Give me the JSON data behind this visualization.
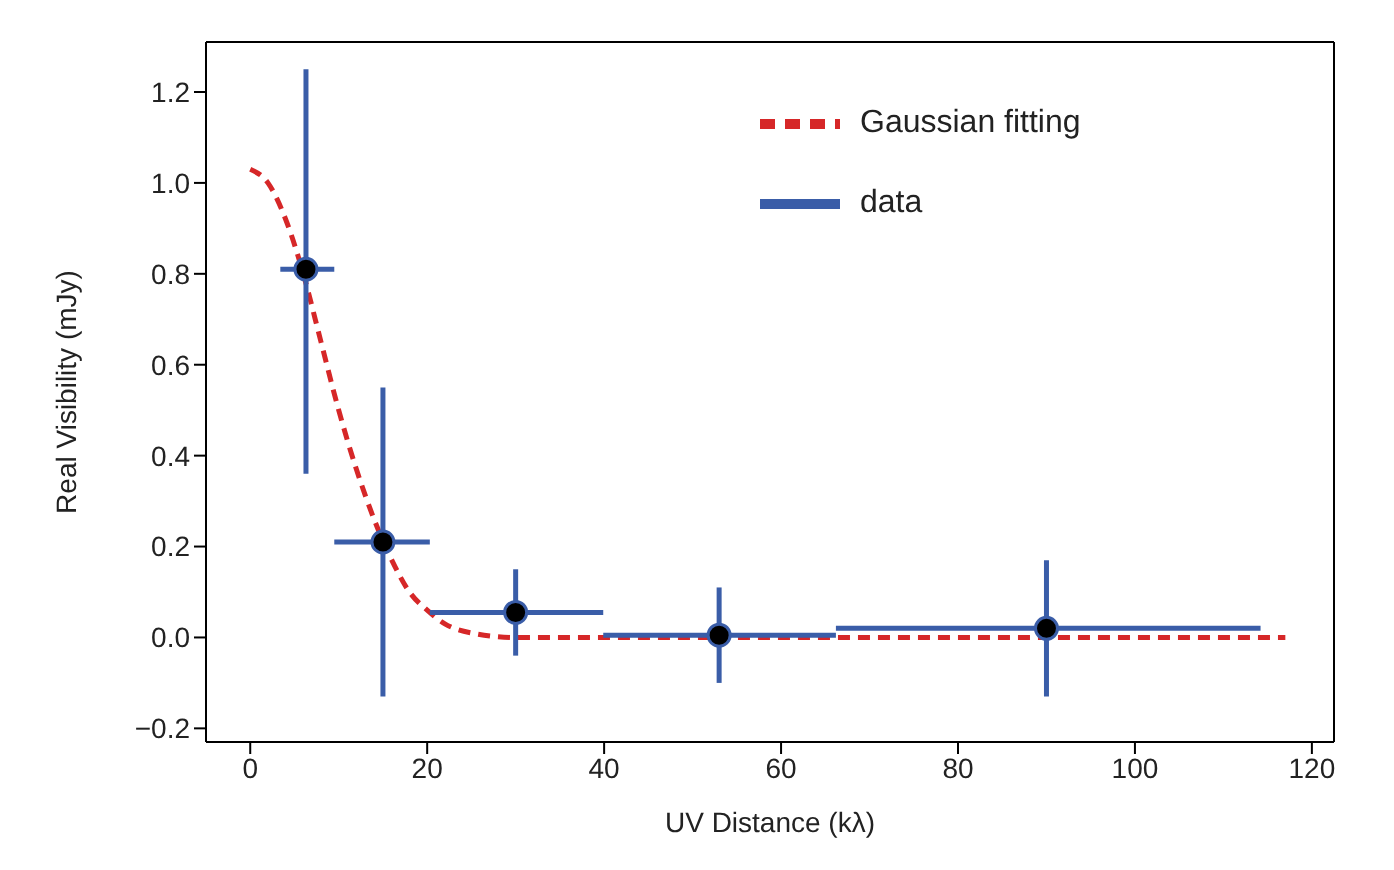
{
  "chart_data": {
    "type": "scatter",
    "xlabel": "UV Distance (kλ)",
    "ylabel": "Real Visibility (mJy)",
    "xlim": [
      -5,
      122.5
    ],
    "xticks": [
      0,
      20,
      40,
      60,
      80,
      100,
      120
    ],
    "ylim": [
      -0.23,
      1.31
    ],
    "yticks": [
      {
        "value": -0.2,
        "label": "−0.2"
      },
      {
        "value": 0,
        "label": "0.0"
      },
      0.2,
      0.4,
      0.6,
      0.8,
      {
        "value": 1,
        "label": "1.0"
      },
      1.2
    ],
    "legend": "top right",
    "series": [
      {
        "name": "Gaussian fitting",
        "type": "line",
        "line_style": "dashed",
        "marker": "none",
        "color": "#d62728",
        "x": [
          0,
          2,
          4,
          6,
          8,
          10,
          12,
          14,
          16,
          18,
          20,
          22,
          25,
          30,
          40,
          60,
          80,
          100,
          117
        ],
        "values": [
          1.03,
          1.0,
          0.92,
          0.8,
          0.65,
          0.5,
          0.37,
          0.26,
          0.17,
          0.1,
          0.06,
          0.03,
          0.01,
          0.0,
          0.0,
          0.0,
          0.0,
          0.0,
          0.0
        ]
      },
      {
        "name": "data",
        "marker": "circle",
        "color": "#3a5da8",
        "x": [
          6.3,
          15,
          30,
          53,
          90
        ],
        "values": [
          0.81,
          0.21,
          0.055,
          0.005,
          0.02
        ],
        "errors": [
          [
            0.36,
            1.25
          ],
          [
            -0.13,
            0.55
          ],
          [
            -0.04,
            0.15
          ],
          [
            -0.1,
            0.11
          ],
          [
            -0.13,
            0.17
          ]
        ],
        "xerrors": [
          [
            3.4,
            9.5
          ],
          [
            9.5,
            20.3
          ],
          [
            20.3,
            39.9
          ],
          [
            39.9,
            66.2
          ],
          [
            66.2,
            114.2
          ]
        ]
      }
    ]
  }
}
